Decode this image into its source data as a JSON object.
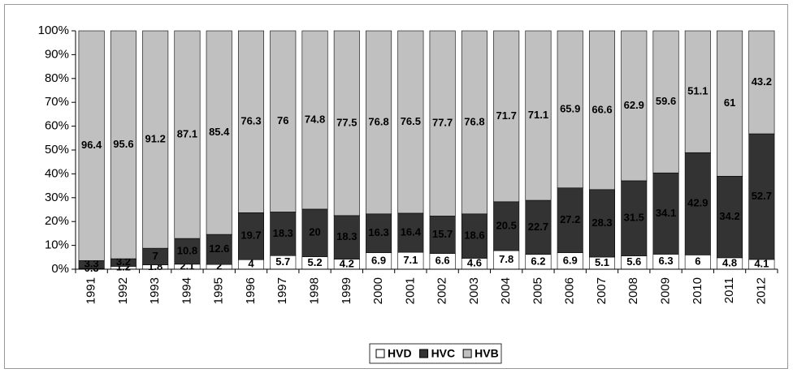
{
  "chart_data": {
    "type": "stacked_bar_100",
    "categories": [
      "1991",
      "1992",
      "1993",
      "1994",
      "1995",
      "1996",
      "1997",
      "1998",
      "1999",
      "2000",
      "2001",
      "2002",
      "2003",
      "2004",
      "2005",
      "2006",
      "2007",
      "2008",
      "2009",
      "2010",
      "2011",
      "2012"
    ],
    "series": [
      {
        "name": "HVD",
        "color": "#ffffff",
        "values": [
          0.3,
          1.2,
          1.8,
          2.1,
          2,
          4,
          5.7,
          5.2,
          4.2,
          6.9,
          7.1,
          6.6,
          4.6,
          7.8,
          6.2,
          6.9,
          5.1,
          5.6,
          6.3,
          6,
          4.8,
          4.1
        ]
      },
      {
        "name": "HVC",
        "color": "#333333",
        "values": [
          3.3,
          3.2,
          7,
          10.8,
          12.6,
          19.7,
          18.3,
          20,
          18.3,
          16.3,
          16.4,
          15.7,
          18.6,
          20.5,
          22.7,
          27.2,
          28.3,
          31.5,
          34.1,
          42.9,
          34.2,
          52.7
        ]
      },
      {
        "name": "HVB",
        "color": "#c0c0c0",
        "values": [
          96.4,
          95.6,
          91.2,
          87.1,
          85.4,
          76.3,
          76,
          74.8,
          77.5,
          76.8,
          76.5,
          77.7,
          76.8,
          71.7,
          71.1,
          65.9,
          66.6,
          62.9,
          59.6,
          51.1,
          61,
          43.2
        ]
      }
    ],
    "ylim": [
      0,
      100
    ],
    "yticks": [
      {
        "value": 0,
        "label": "0%"
      },
      {
        "value": 10,
        "label": "10%"
      },
      {
        "value": 20,
        "label": "20%"
      },
      {
        "value": 30,
        "label": "30%"
      },
      {
        "value": 40,
        "label": "40%"
      },
      {
        "value": 50,
        "label": "50%"
      },
      {
        "value": 60,
        "label": "60%"
      },
      {
        "value": 70,
        "label": "70%"
      },
      {
        "value": 80,
        "label": "80%"
      },
      {
        "value": 90,
        "label": "90%"
      },
      {
        "value": 100,
        "label": "100%"
      }
    ],
    "legend": "bottom"
  }
}
